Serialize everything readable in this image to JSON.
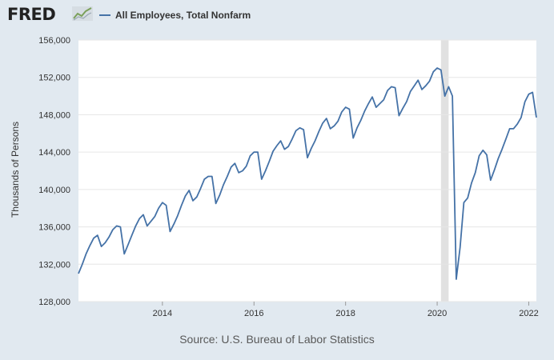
{
  "header": {
    "logo_text": "FRED",
    "logo_icon": "trend-line-icon",
    "legend_label": "All Employees, Total Nonfarm",
    "legend_color": "#4572a7"
  },
  "source_text": "Source: U.S. Bureau of Labor Statistics",
  "chart_data": {
    "type": "line",
    "ylabel": "Thousands of Persons",
    "ylim": [
      128000,
      156000
    ],
    "yticks": [
      128000,
      132000,
      136000,
      140000,
      144000,
      148000,
      152000,
      156000
    ],
    "ytick_labels": [
      "128,000",
      "132,000",
      "136,000",
      "140,000",
      "144,000",
      "148,000",
      "152,000",
      "156,000"
    ],
    "xlim": [
      "2012-03",
      "2022-03"
    ],
    "xticks": [
      "2014-01",
      "2016-01",
      "2018-01",
      "2020-01",
      "2022-01"
    ],
    "xtick_labels": [
      "2014",
      "2016",
      "2018",
      "2020",
      "2022"
    ],
    "grid": "horizontal",
    "line_color": "#4572a7",
    "recession_shading": [
      {
        "start": "2020-02",
        "end": "2020-04",
        "color": "#e1e1e1"
      }
    ],
    "series": [
      {
        "name": "All Employees, Total Nonfarm",
        "x": [
          "2012-03",
          "2012-04",
          "2012-05",
          "2012-06",
          "2012-07",
          "2012-08",
          "2012-09",
          "2012-10",
          "2012-11",
          "2012-12",
          "2013-01",
          "2013-02",
          "2013-03",
          "2013-04",
          "2013-05",
          "2013-06",
          "2013-07",
          "2013-08",
          "2013-09",
          "2013-10",
          "2013-11",
          "2013-12",
          "2014-01",
          "2014-02",
          "2014-03",
          "2014-04",
          "2014-05",
          "2014-06",
          "2014-07",
          "2014-08",
          "2014-09",
          "2014-10",
          "2014-11",
          "2014-12",
          "2015-01",
          "2015-02",
          "2015-03",
          "2015-04",
          "2015-05",
          "2015-06",
          "2015-07",
          "2015-08",
          "2015-09",
          "2015-10",
          "2015-11",
          "2015-12",
          "2016-01",
          "2016-02",
          "2016-03",
          "2016-04",
          "2016-05",
          "2016-06",
          "2016-07",
          "2016-08",
          "2016-09",
          "2016-10",
          "2016-11",
          "2016-12",
          "2017-01",
          "2017-02",
          "2017-03",
          "2017-04",
          "2017-05",
          "2017-06",
          "2017-07",
          "2017-08",
          "2017-09",
          "2017-10",
          "2017-11",
          "2017-12",
          "2018-01",
          "2018-02",
          "2018-03",
          "2018-04",
          "2018-05",
          "2018-06",
          "2018-07",
          "2018-08",
          "2018-09",
          "2018-10",
          "2018-11",
          "2018-12",
          "2019-01",
          "2019-02",
          "2019-03",
          "2019-04",
          "2019-05",
          "2019-06",
          "2019-07",
          "2019-08",
          "2019-09",
          "2019-10",
          "2019-11",
          "2019-12",
          "2020-01",
          "2020-02",
          "2020-03",
          "2020-04",
          "2020-05",
          "2020-06",
          "2020-07",
          "2020-08",
          "2020-09",
          "2020-10",
          "2020-11",
          "2020-12",
          "2021-01",
          "2021-02",
          "2021-03",
          "2021-04",
          "2021-05",
          "2021-06",
          "2021-07",
          "2021-08",
          "2021-09",
          "2021-10",
          "2021-11",
          "2021-12",
          "2022-01",
          "2022-02",
          "2022-03"
        ],
        "values": [
          131000,
          132000,
          133100,
          134000,
          134800,
          135100,
          133900,
          134300,
          134900,
          135700,
          136100,
          136000,
          133100,
          134100,
          135100,
          136100,
          136900,
          137300,
          136100,
          136600,
          137100,
          138000,
          138600,
          138300,
          135500,
          136300,
          137200,
          138300,
          139300,
          139900,
          138800,
          139200,
          140100,
          141100,
          141400,
          141400,
          138500,
          139400,
          140500,
          141400,
          142400,
          142800,
          141800,
          142000,
          142500,
          143600,
          144000,
          144000,
          141100,
          142000,
          143000,
          144100,
          144700,
          145200,
          144300,
          144600,
          145400,
          146300,
          146600,
          146400,
          143400,
          144400,
          145200,
          146200,
          147100,
          147600,
          146500,
          146800,
          147300,
          148300,
          148800,
          148600,
          145500,
          146600,
          147400,
          148400,
          149200,
          149900,
          148800,
          149200,
          149600,
          150600,
          151000,
          150900,
          147900,
          148700,
          149400,
          150500,
          151100,
          151700,
          150700,
          151100,
          151600,
          152600,
          153000,
          152800,
          150000,
          151000,
          150000,
          130400,
          133800,
          138600,
          139100,
          140700,
          141800,
          143600,
          144200,
          143700,
          141000,
          142100,
          143300,
          144300,
          145400,
          146500,
          146500,
          147000,
          147700,
          149400,
          150200,
          150400,
          147700
        ]
      }
    ]
  }
}
